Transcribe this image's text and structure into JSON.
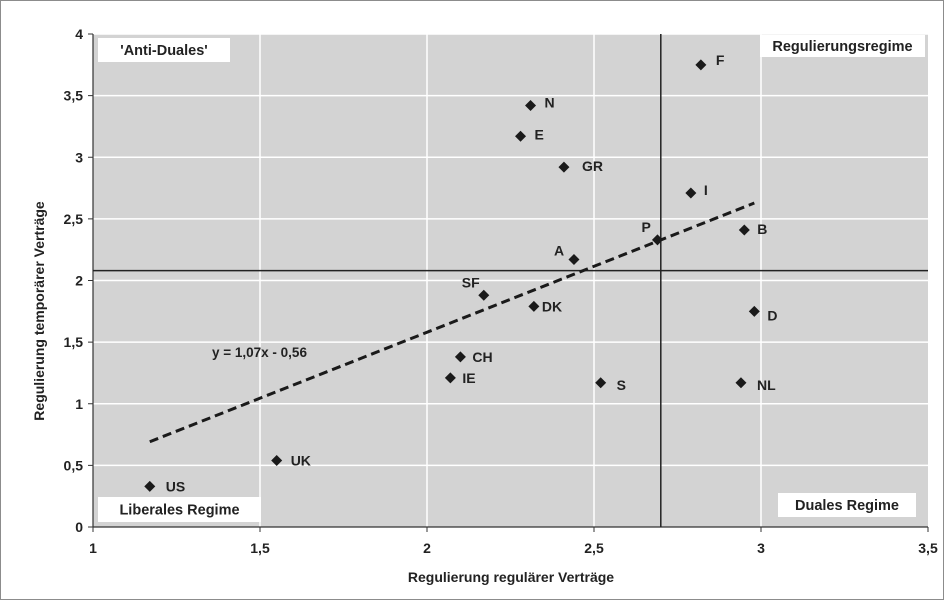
{
  "chart_data": {
    "type": "scatter",
    "title": "",
    "xlabel": "Regulierung regulärer Verträge",
    "ylabel": "Regulierung temporärer Verträge",
    "xlim": [
      1,
      3.5
    ],
    "ylim": [
      0,
      4
    ],
    "x_ticks": [
      "1",
      "1,5",
      "2",
      "2,5",
      "3",
      "3,5"
    ],
    "y_ticks": [
      "0",
      "0,5",
      "1",
      "1,5",
      "2",
      "2,5",
      "3",
      "3,5",
      "4"
    ],
    "grid": true,
    "background": "#d3d3d3",
    "marker_color": "#1a1a1a",
    "points": [
      {
        "label": "US",
        "x": 1.17,
        "y": 0.33
      },
      {
        "label": "UK",
        "x": 1.55,
        "y": 0.54
      },
      {
        "label": "IE",
        "x": 2.07,
        "y": 1.21
      },
      {
        "label": "CH",
        "x": 2.1,
        "y": 1.38
      },
      {
        "label": "SF",
        "x": 2.17,
        "y": 1.88
      },
      {
        "label": "DK",
        "x": 2.32,
        "y": 1.79
      },
      {
        "label": "E",
        "x": 2.28,
        "y": 3.17
      },
      {
        "label": "N",
        "x": 2.31,
        "y": 3.42
      },
      {
        "label": "GR",
        "x": 2.41,
        "y": 2.92
      },
      {
        "label": "A",
        "x": 2.44,
        "y": 2.17
      },
      {
        "label": "S",
        "x": 2.52,
        "y": 1.17
      },
      {
        "label": "P",
        "x": 2.69,
        "y": 2.33
      },
      {
        "label": "I",
        "x": 2.79,
        "y": 2.71
      },
      {
        "label": "F",
        "x": 2.82,
        "y": 3.75
      },
      {
        "label": "NL",
        "x": 2.94,
        "y": 1.17
      },
      {
        "label": "B",
        "x": 2.95,
        "y": 2.41
      },
      {
        "label": "D",
        "x": 2.98,
        "y": 1.75
      }
    ],
    "reference_lines": {
      "vertical_x": 2.7,
      "horizontal_y": 2.08
    },
    "trendline": {
      "equation": "y = 1,07x - 0,56",
      "slope": 1.07,
      "intercept": -0.56,
      "x_range": [
        1.17,
        2.98
      ]
    },
    "quadrant_labels": {
      "top_left": "'Anti-Duales'",
      "top_right": "Regulierungsregime",
      "bottom_left": "Liberales Regime",
      "bottom_right": "Duales Regime"
    }
  }
}
